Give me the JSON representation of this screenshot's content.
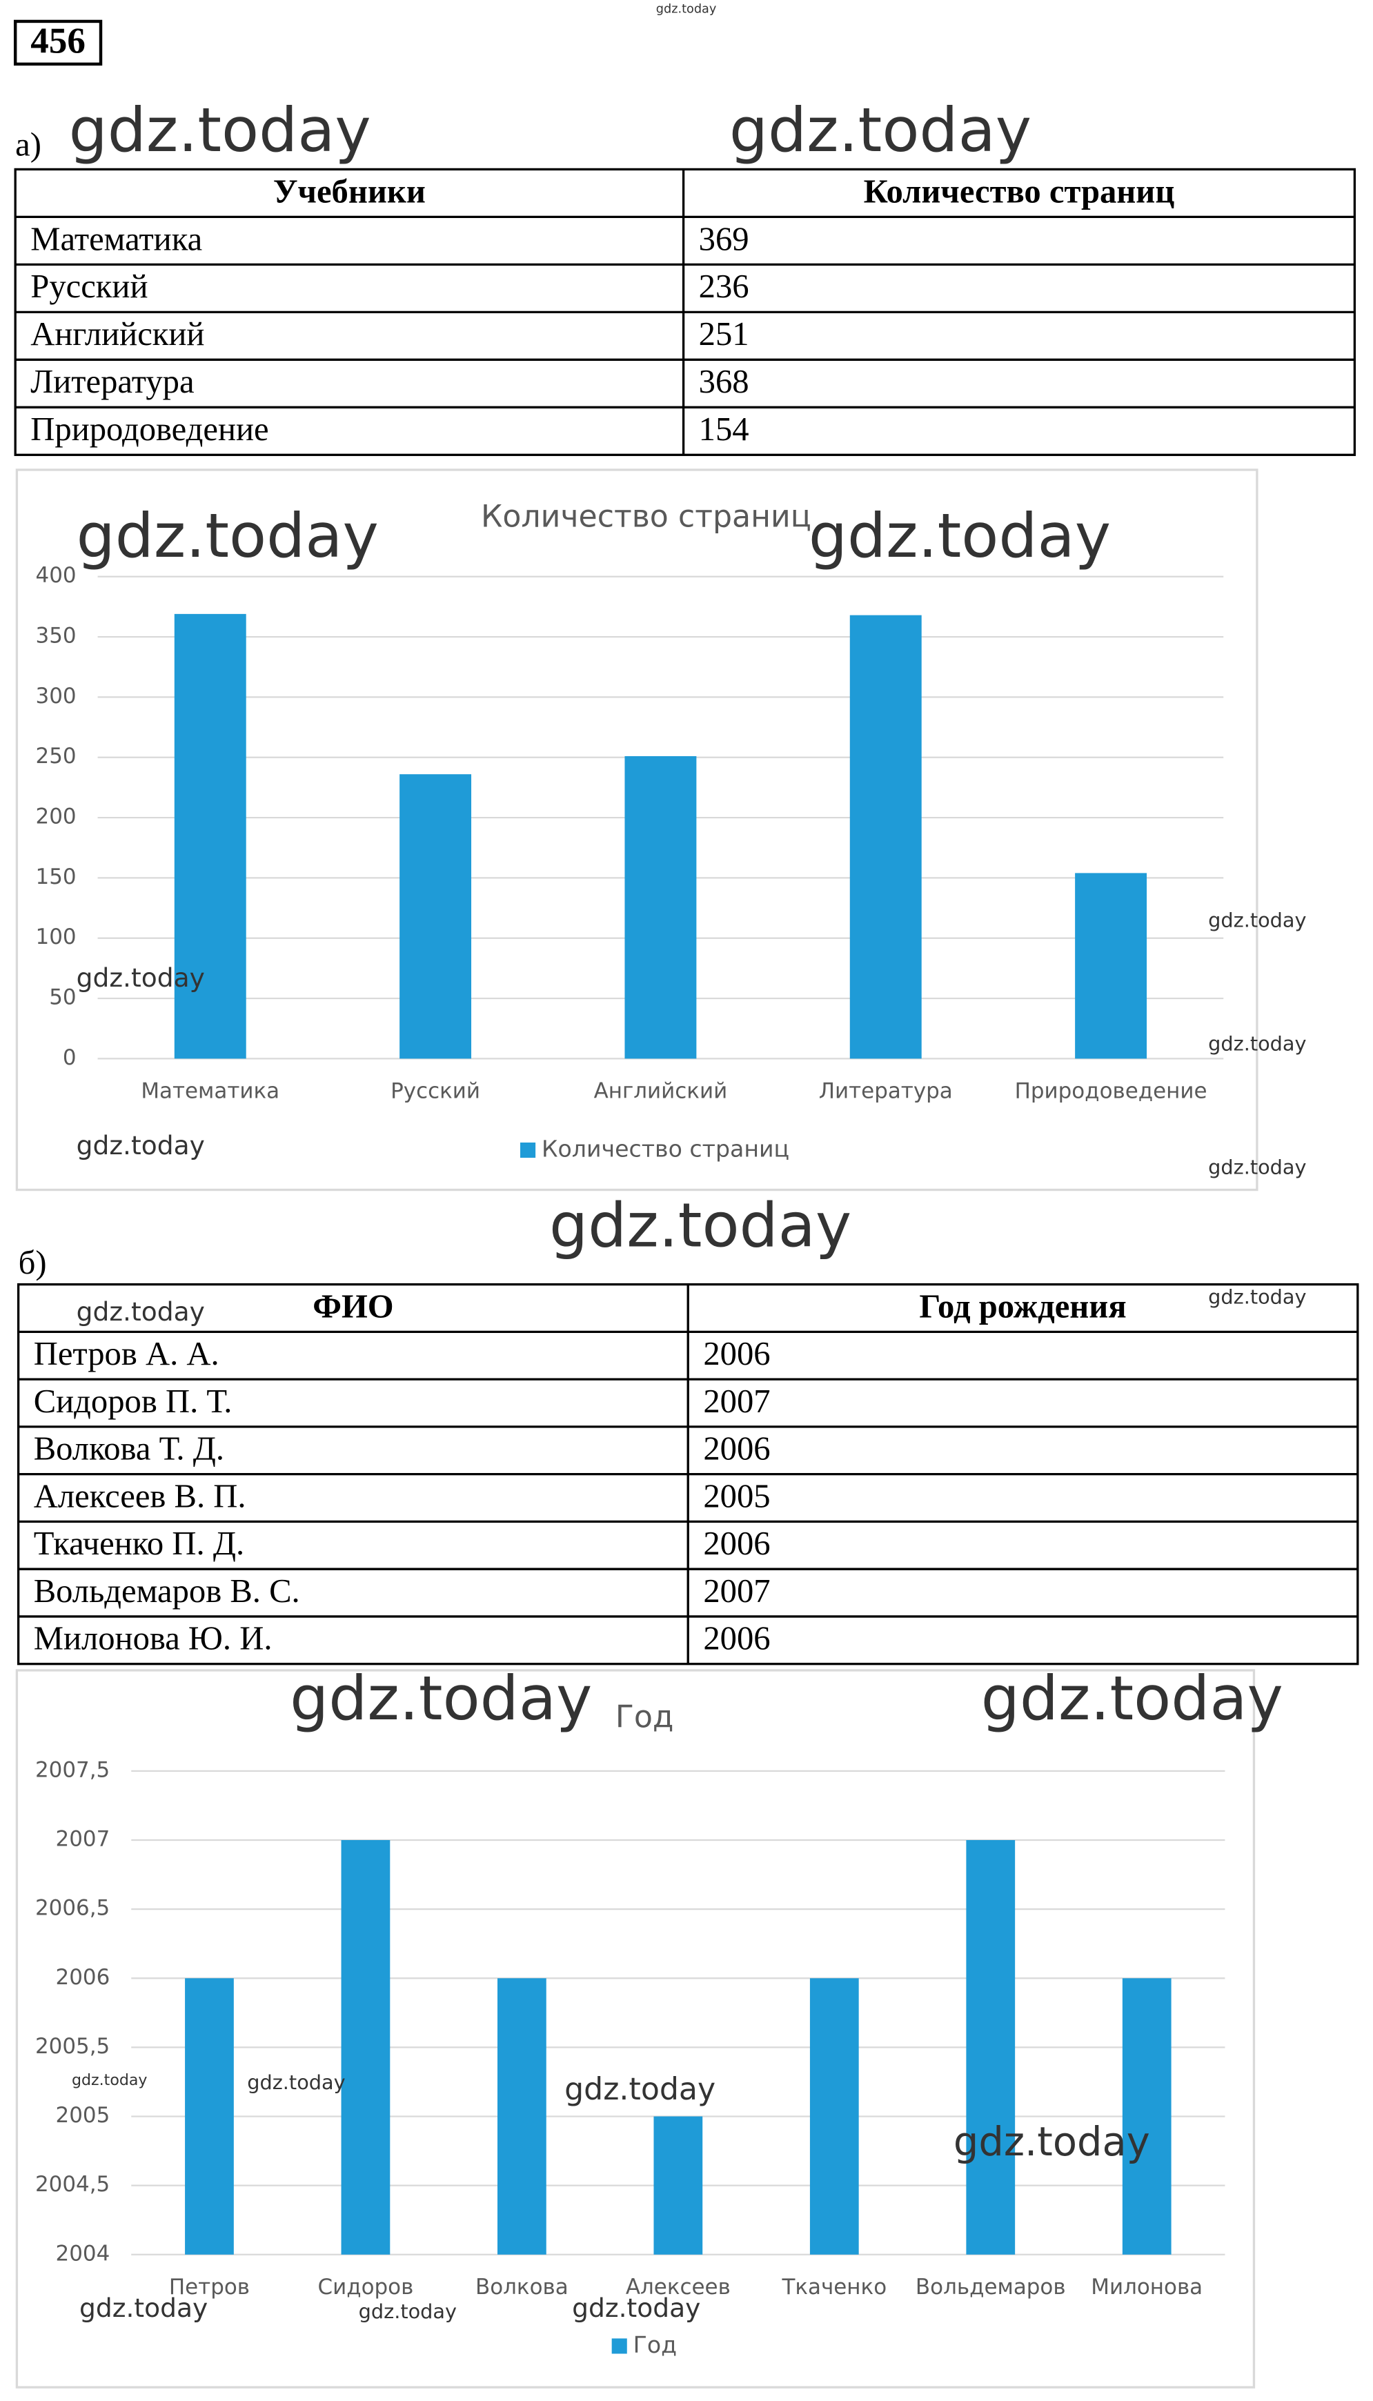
{
  "problem_number": "456",
  "watermark": "gdz.today",
  "part_a": {
    "label": "а)",
    "table": {
      "header": [
        "Учебники",
        "Количество страниц"
      ],
      "rows": [
        [
          "Математика",
          "369"
        ],
        [
          "Русский",
          "236"
        ],
        [
          "Английский",
          "251"
        ],
        [
          "Литература",
          "368"
        ],
        [
          "Природоведение",
          "154"
        ]
      ]
    },
    "chart": {
      "type": "bar",
      "title": "Количество страниц",
      "categories": [
        "Математика",
        "Русский",
        "Английский",
        "Литература",
        "Природоведение"
      ],
      "series": [
        {
          "name": "Количество страниц",
          "color": "#1f9bd7",
          "values": [
            369,
            236,
            251,
            368,
            154
          ]
        }
      ],
      "ylim": [
        0,
        400
      ],
      "yticks": [
        0,
        50,
        100,
        150,
        200,
        250,
        300,
        350,
        400
      ],
      "grid": true
    }
  },
  "part_b": {
    "label": "б)",
    "table": {
      "header": [
        "ФИО",
        "Год рождения"
      ],
      "rows": [
        [
          "Петров А. А.",
          "2006"
        ],
        [
          "Сидоров П. Т.",
          "2007"
        ],
        [
          "Волкова Т. Д.",
          "2006"
        ],
        [
          "Алексеев В. П.",
          "2005"
        ],
        [
          "Ткаченко П. Д.",
          "2006"
        ],
        [
          "Вольдемаров В. С.",
          "2007"
        ],
        [
          "Милонова Ю. И.",
          "2006"
        ]
      ]
    },
    "chart": {
      "type": "bar",
      "title": "Год",
      "categories": [
        "Петров",
        "Сидоров",
        "Волкова",
        "Алексеев",
        "Ткаченко",
        "Вольдемаров",
        "Милонова"
      ],
      "series": [
        {
          "name": "Год",
          "color": "#1f9bd7",
          "values": [
            2006,
            2007,
            2006,
            2005,
            2006,
            2007,
            2006
          ]
        }
      ],
      "ylim": [
        2004,
        2007.5
      ],
      "yticks": [
        2004,
        {
          "value": 2004.5,
          "label": "2004,5"
        },
        2005,
        {
          "value": 2005.5,
          "label": "2005,5"
        },
        2006,
        {
          "value": 2006.5,
          "label": "2006,5"
        },
        2007,
        {
          "value": 2007.5,
          "label": "2007,5"
        }
      ],
      "grid": true
    }
  }
}
